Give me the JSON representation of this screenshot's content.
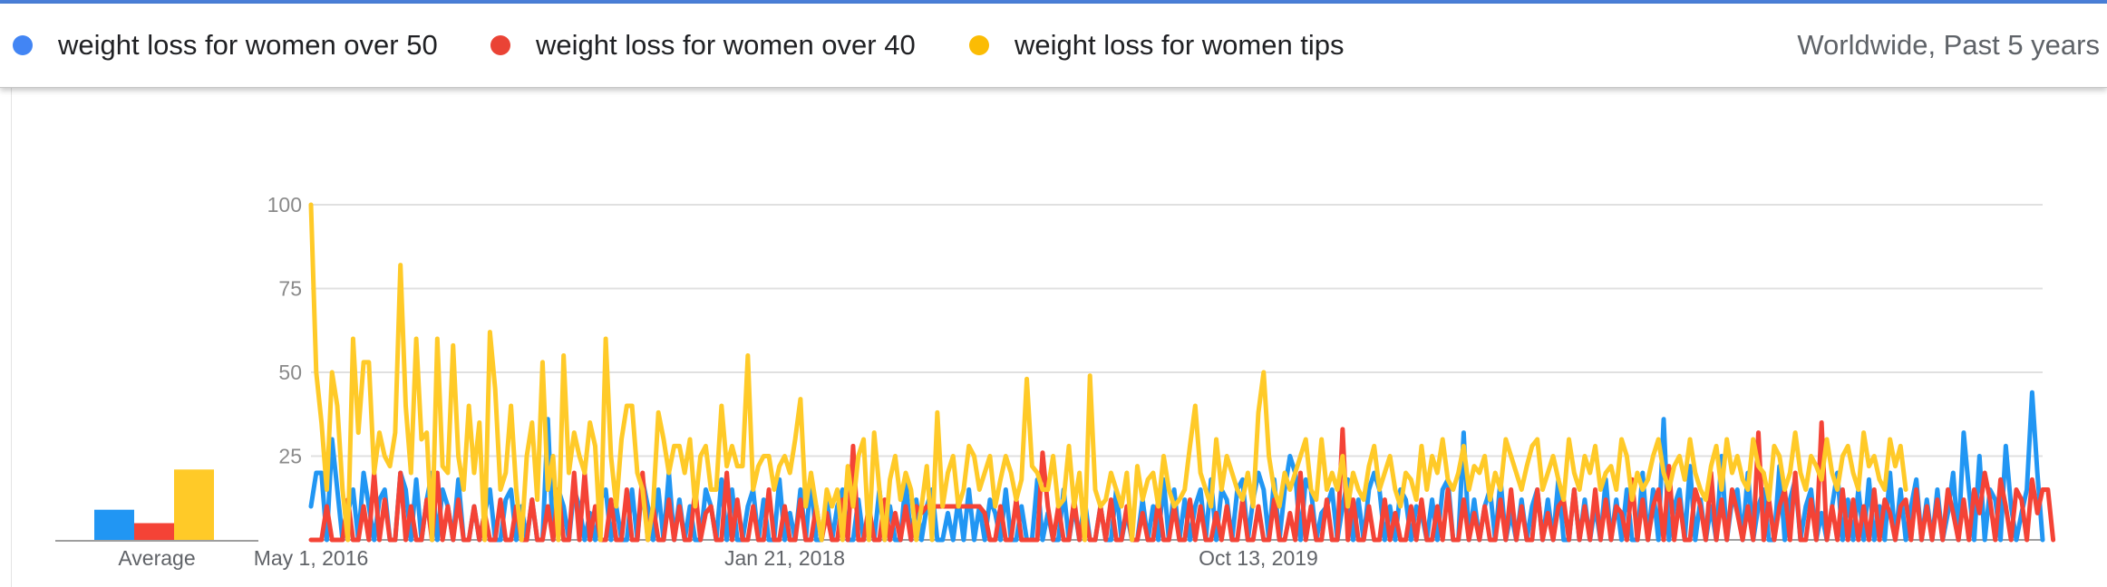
{
  "header": {
    "terms": [
      {
        "label": "weight loss for women over 50",
        "color": "#4285f4"
      },
      {
        "label": "weight loss for women over 40",
        "color": "#ea4335"
      },
      {
        "label": "weight loss for women tips",
        "color": "#fbbc04"
      }
    ],
    "region_label": "Worldwide, Past 5 years"
  },
  "chart_data": [
    {
      "type": "bar",
      "categories": [
        "weight loss for women over 50",
        "weight loss for women over 40",
        "weight loss for women tips"
      ],
      "values": [
        9,
        5,
        21
      ],
      "xlabel": "Average",
      "ylim": [
        0,
        100
      ],
      "colors": [
        "#2196f3",
        "#f44336",
        "#ffca28"
      ]
    },
    {
      "type": "line",
      "x_start": "2016-05-01",
      "x_interval": "week",
      "x_tick_labels": [
        "May 1, 2016",
        "Jan 21, 2018",
        "Oct 13, 2019"
      ],
      "y_ticks": [
        25,
        50,
        75,
        100
      ],
      "ylim": [
        0,
        100
      ],
      "grid": true,
      "series": [
        {
          "name": "weight loss for women over 50",
          "color": "#2196f3",
          "values": [
            10,
            20,
            20,
            0,
            30,
            15,
            0,
            8,
            15,
            0,
            20,
            10,
            0,
            12,
            15,
            0,
            0,
            20,
            15,
            0,
            18,
            0,
            12,
            20,
            0,
            15,
            10,
            0,
            18,
            0,
            0,
            10,
            0,
            8,
            15,
            0,
            0,
            12,
            15,
            0,
            10,
            0,
            12,
            0,
            0,
            36,
            0,
            15,
            10,
            0,
            15,
            10,
            0,
            8,
            0,
            12,
            15,
            0,
            10,
            0,
            0,
            15,
            0,
            18,
            10,
            0,
            15,
            0,
            20,
            0,
            12,
            0,
            10,
            0,
            0,
            15,
            10,
            0,
            18,
            0,
            15,
            0,
            0,
            10,
            15,
            0,
            12,
            0,
            0,
            18,
            0,
            8,
            0,
            15,
            0,
            18,
            0,
            0,
            12,
            0,
            10,
            15,
            0,
            0,
            12,
            0,
            8,
            0,
            15,
            0,
            10,
            0,
            0,
            18,
            0,
            12,
            0,
            10,
            15,
            0,
            0,
            8,
            0,
            12,
            0,
            15,
            0,
            10,
            0,
            12,
            8,
            0,
            15,
            0,
            0,
            10,
            0,
            0,
            18,
            0,
            8,
            0,
            0,
            15,
            0,
            10,
            0,
            12,
            0,
            0,
            10,
            0,
            0,
            15,
            0,
            8,
            0,
            0,
            12,
            0,
            10,
            0,
            18,
            0,
            15,
            0,
            12,
            0,
            10,
            15,
            0,
            18,
            0,
            15,
            12,
            0,
            15,
            18,
            0,
            12,
            20,
            15,
            0,
            18,
            0,
            15,
            25,
            20,
            0,
            18,
            15,
            0,
            8,
            10,
            15,
            0,
            10,
            18,
            0,
            12,
            0,
            15,
            20,
            15,
            0,
            10,
            0,
            15,
            12,
            0,
            10,
            8,
            0,
            12,
            0,
            15,
            18,
            0,
            0,
            32,
            0,
            12,
            0,
            10,
            15,
            0,
            18,
            0,
            8,
            0,
            12,
            0,
            10,
            15,
            0,
            12,
            0,
            18,
            0,
            0,
            15,
            0,
            12,
            0,
            10,
            0,
            18,
            0,
            12,
            0,
            15,
            0,
            0,
            20,
            0,
            15,
            0,
            36,
            0,
            10,
            15,
            0,
            22,
            0,
            12,
            0,
            10,
            0,
            25,
            0,
            12,
            15,
            0,
            20,
            0,
            10,
            15,
            0,
            0,
            22,
            0,
            12,
            18,
            0,
            10,
            15,
            0,
            8,
            0,
            10,
            20,
            0,
            12,
            0,
            15,
            0,
            18,
            0,
            10,
            0,
            20,
            0,
            15,
            0,
            10,
            18,
            0,
            12,
            0,
            15,
            0,
            8,
            20,
            0,
            32,
            15,
            0,
            25,
            0,
            15,
            12,
            0,
            28,
            10,
            0,
            8,
            15,
            44,
            20,
            0
          ]
        },
        {
          "name": "weight loss for women over 40",
          "color": "#f44336",
          "values": [
            0,
            0,
            0,
            10,
            0,
            0,
            0,
            12,
            0,
            0,
            10,
            0,
            20,
            0,
            12,
            0,
            0,
            20,
            0,
            10,
            0,
            0,
            12,
            0,
            20,
            0,
            10,
            0,
            12,
            0,
            0,
            10,
            0,
            8,
            0,
            0,
            12,
            0,
            0,
            10,
            0,
            0,
            12,
            0,
            0,
            10,
            0,
            15,
            0,
            0,
            20,
            0,
            20,
            0,
            10,
            0,
            0,
            12,
            0,
            0,
            15,
            0,
            0,
            20,
            0,
            10,
            0,
            0,
            12,
            0,
            10,
            0,
            0,
            15,
            0,
            8,
            10,
            0,
            0,
            20,
            0,
            12,
            0,
            0,
            10,
            0,
            0,
            15,
            0,
            0,
            10,
            0,
            0,
            12,
            0,
            0,
            10,
            0,
            8,
            0,
            0,
            12,
            0,
            28,
            0,
            0,
            10,
            0,
            0,
            12,
            0,
            8,
            0,
            10,
            0,
            10,
            8,
            10,
            10,
            10,
            10,
            10,
            10,
            10,
            10,
            10,
            10,
            10,
            8,
            0,
            0,
            10,
            0,
            0,
            12,
            0,
            0,
            0,
            0,
            26,
            10,
            0,
            10,
            0,
            0,
            12,
            0,
            8,
            0,
            0,
            10,
            0,
            12,
            0,
            0,
            10,
            0,
            0,
            8,
            0,
            0,
            12,
            0,
            0,
            10,
            0,
            0,
            12,
            0,
            10,
            0,
            0,
            8,
            0,
            10,
            0,
            0,
            12,
            0,
            0,
            10,
            0,
            0,
            12,
            0,
            0,
            8,
            0,
            20,
            0,
            10,
            0,
            0,
            12,
            0,
            0,
            33,
            0,
            12,
            0,
            0,
            10,
            0,
            0,
            12,
            0,
            8,
            0,
            0,
            10,
            0,
            12,
            0,
            0,
            10,
            0,
            15,
            0,
            0,
            12,
            0,
            8,
            0,
            10,
            0,
            0,
            12,
            0,
            15,
            0,
            10,
            0,
            0,
            15,
            0,
            8,
            0,
            10,
            12,
            0,
            15,
            0,
            10,
            0,
            15,
            0,
            12,
            0,
            10,
            8,
            0,
            18,
            0,
            12,
            0,
            10,
            15,
            0,
            22,
            0,
            12,
            0,
            0,
            15,
            10,
            0,
            20,
            0,
            12,
            0,
            15,
            8,
            0,
            10,
            0,
            32,
            0,
            12,
            0,
            10,
            15,
            0,
            20,
            0,
            0,
            12,
            0,
            35,
            0,
            10,
            0,
            15,
            0,
            12,
            0,
            10,
            0,
            15,
            0,
            12,
            8,
            0,
            10,
            12,
            0,
            15,
            0,
            10,
            0,
            12,
            0,
            15,
            8,
            0,
            12,
            0,
            15,
            8,
            20,
            12,
            0,
            18,
            10,
            0,
            15,
            12,
            0,
            18,
            8,
            15,
            15,
            0
          ]
        },
        {
          "name": "weight loss for women tips",
          "color": "#ffca28",
          "values": [
            100,
            50,
            35,
            15,
            50,
            40,
            15,
            0,
            60,
            32,
            53,
            53,
            20,
            32,
            25,
            22,
            32,
            82,
            40,
            20,
            60,
            30,
            32,
            0,
            60,
            22,
            20,
            58,
            25,
            15,
            40,
            20,
            35,
            0,
            62,
            45,
            15,
            20,
            40,
            15,
            0,
            25,
            35,
            12,
            53,
            15,
            25,
            0,
            55,
            20,
            32,
            25,
            20,
            35,
            28,
            0,
            60,
            25,
            10,
            30,
            40,
            40,
            20,
            15,
            0,
            10,
            38,
            30,
            20,
            28,
            28,
            20,
            30,
            10,
            25,
            28,
            15,
            15,
            40,
            22,
            28,
            22,
            22,
            55,
            15,
            22,
            25,
            25,
            15,
            22,
            25,
            20,
            30,
            42,
            10,
            20,
            10,
            0,
            15,
            10,
            15,
            0,
            22,
            10,
            25,
            30,
            0,
            32,
            15,
            0,
            18,
            25,
            12,
            20,
            15,
            0,
            10,
            22,
            0,
            38,
            10,
            20,
            25,
            10,
            15,
            28,
            25,
            15,
            20,
            25,
            10,
            18,
            25,
            20,
            12,
            18,
            48,
            22,
            20,
            15,
            15,
            25,
            10,
            12,
            28,
            10,
            20,
            0,
            49,
            15,
            10,
            12,
            20,
            15,
            10,
            20,
            0,
            22,
            12,
            18,
            20,
            10,
            25,
            15,
            10,
            12,
            15,
            28,
            40,
            20,
            15,
            10,
            30,
            15,
            25,
            20,
            15,
            12,
            20,
            10,
            38,
            50,
            25,
            15,
            10,
            20,
            15,
            20,
            25,
            30,
            15,
            12,
            30,
            15,
            20,
            15,
            25,
            10,
            20,
            15,
            12,
            22,
            28,
            15,
            20,
            25,
            15,
            10,
            20,
            18,
            12,
            28,
            15,
            25,
            20,
            30,
            18,
            15,
            20,
            28,
            15,
            22,
            20,
            25,
            12,
            20,
            15,
            30,
            25,
            20,
            15,
            22,
            28,
            30,
            15,
            20,
            25,
            18,
            12,
            30,
            20,
            15,
            25,
            20,
            28,
            15,
            20,
            22,
            15,
            30,
            25,
            12,
            20,
            15,
            18,
            25,
            30,
            20,
            15,
            22,
            25,
            18,
            30,
            20,
            15,
            12,
            22,
            28,
            15,
            30,
            20,
            25,
            18,
            15,
            30,
            22,
            20,
            12,
            28,
            25,
            15,
            20,
            32,
            20,
            15,
            25,
            22,
            18,
            30,
            20,
            15,
            25,
            28,
            20,
            15,
            32,
            22,
            25,
            18,
            15,
            30,
            22,
            28,
            15
          ]
        }
      ]
    }
  ]
}
